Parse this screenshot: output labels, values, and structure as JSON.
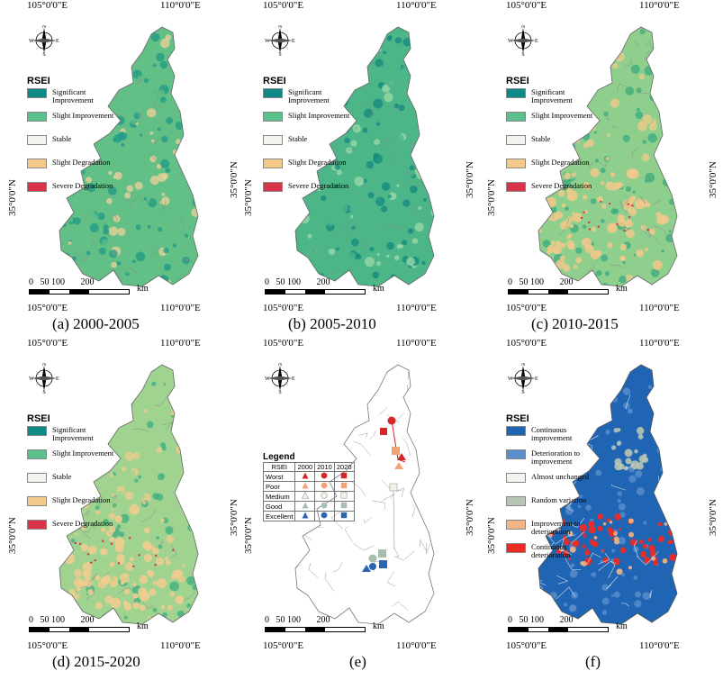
{
  "axis_labels": {
    "lon_left": "105°0'0\"E",
    "lon_right": "110°0'0\"E",
    "lat": "35°0'0\"N"
  },
  "compass": {
    "n": "N",
    "s": "S",
    "e": "E",
    "w": "W"
  },
  "scale": {
    "ticks": "0   50 100       200",
    "unit": "km"
  },
  "legend_rsei": {
    "title": "RSEI",
    "items": [
      {
        "label": "Significant Improvement",
        "color": "#0e8a86"
      },
      {
        "label": "Slight Improvement",
        "color": "#5cc08c"
      },
      {
        "label": "Stable",
        "color": "#f2f2ee"
      },
      {
        "label": "Slight Degradation",
        "color": "#f5c98a"
      },
      {
        "label": "Severe Degradation",
        "color": "#d9334a"
      }
    ]
  },
  "panels": [
    {
      "caption": "(a) 2000-2005",
      "fill": "#62bf86",
      "dark": "#1f9986",
      "light": "#efd29a",
      "red": "#d9334a"
    },
    {
      "caption": "(b) 2005-2010",
      "fill": "#4cb688",
      "dark": "#12887f",
      "light": "#9fd9a8",
      "red": "#d9334a"
    },
    {
      "caption": "(c) 2010-2015",
      "fill": "#8fcf8d",
      "dark": "#3aa97f",
      "light": "#f2c98b",
      "red": "#d9334a"
    },
    {
      "caption": "(d) 2015-2020",
      "fill": "#9fd38f",
      "dark": "#3caf80",
      "light": "#f1cc8f",
      "red": "#d9334a"
    },
    {
      "caption": "(e)"
    },
    {
      "caption": "(f)"
    }
  ],
  "legend_e": {
    "title": "Legend",
    "headers": [
      "RSEI",
      "2000",
      "2010",
      "2020"
    ],
    "rows": [
      {
        "label": "Worst",
        "color": "#d7262a"
      },
      {
        "label": "Poor",
        "color": "#f3a276"
      },
      {
        "label": "Medium",
        "color": "#f4f2e4"
      },
      {
        "label": "Good",
        "color": "#a9bfae"
      },
      {
        "label": "Excellent",
        "color": "#2b66b3"
      }
    ]
  },
  "legend_f": {
    "title": "RSEI",
    "items": [
      {
        "label": "Continuous improvement",
        "color": "#1f65b4"
      },
      {
        "label": "Deterioration to improvement",
        "color": "#5a8fcc"
      },
      {
        "label": "Almost unchanged",
        "color": "#f2f2ee"
      },
      {
        "label": "Random variation",
        "color": "#b8c5b3"
      },
      {
        "label": "Improvement to deterioration",
        "color": "#f2b485"
      },
      {
        "label": "Continuous deterioration",
        "color": "#ee2a24"
      }
    ]
  }
}
